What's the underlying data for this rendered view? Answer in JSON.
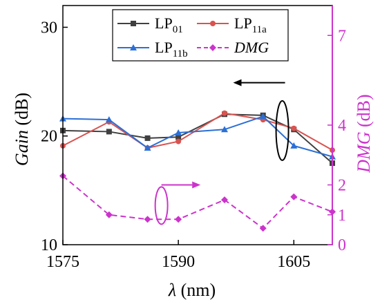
{
  "chart_data": {
    "type": "line",
    "x": [
      1575,
      1581,
      1586,
      1590,
      1596,
      1601,
      1605,
      1610
    ],
    "xlim": [
      1575,
      1610
    ],
    "xticks": [
      "1575",
      "1590",
      "1605"
    ],
    "xlabel": {
      "main": "λ",
      "unit": " (nm)"
    },
    "ylabel_left": {
      "main": "Gain",
      "unit": " (dB)"
    },
    "ylabel_right": {
      "main": "DMG",
      "unit": " (dB)"
    },
    "ylim_left": [
      10,
      32
    ],
    "yticks_left": [
      "10",
      "20",
      "30"
    ],
    "ylim_right": [
      0,
      8
    ],
    "yticks_right": [
      "0",
      "1",
      "2",
      "4",
      "7"
    ],
    "series": [
      {
        "name": "LP01",
        "label_main": "LP",
        "label_sub": "01",
        "axis": "left",
        "color": "#404040",
        "marker": "square",
        "dash": "solid",
        "values": [
          20.5,
          20.4,
          19.8,
          19.9,
          22.0,
          21.9,
          20.6,
          17.5
        ]
      },
      {
        "name": "LP11a",
        "label_main": "LP",
        "label_sub": "11a",
        "axis": "left",
        "color": "#d9534f",
        "marker": "circle",
        "dash": "solid",
        "values": [
          19.1,
          21.3,
          18.9,
          19.5,
          22.1,
          21.5,
          20.7,
          18.7
        ]
      },
      {
        "name": "LP11b",
        "label_main": "LP",
        "label_sub": "11b",
        "axis": "left",
        "color": "#2b6fd6",
        "marker": "triangle",
        "dash": "solid",
        "values": [
          21.6,
          21.5,
          18.9,
          20.3,
          20.6,
          21.8,
          19.1,
          18.1
        ]
      },
      {
        "name": "DMG",
        "label_main": "DMG",
        "label_sub": "",
        "axis": "right",
        "italic": true,
        "color": "#cc33cc",
        "marker": "diamond",
        "dash": "dashed",
        "values": [
          2.3,
          1.0,
          0.85,
          0.85,
          1.5,
          0.55,
          1.6,
          1.1
        ]
      }
    ],
    "legend_position": "top",
    "annotations": [
      {
        "type": "ellipse-arrow",
        "axis": "left",
        "direction": "left",
        "color": "#000000"
      },
      {
        "type": "ellipse-arrow",
        "axis": "right",
        "direction": "right",
        "color": "#cc33cc"
      }
    ]
  }
}
